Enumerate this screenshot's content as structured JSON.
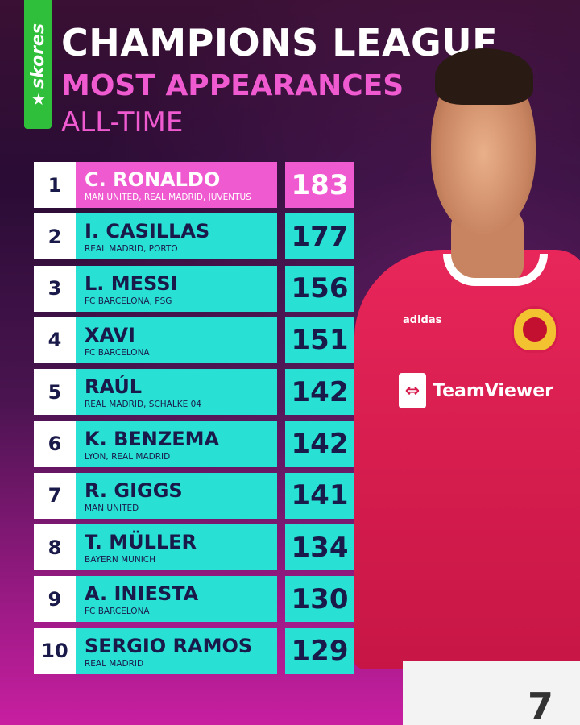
{
  "brand": {
    "name": "skores",
    "star": "★",
    "color": "#2fbf3a"
  },
  "header": {
    "title": "CHAMPIONS LEAGUE",
    "subtitle": "MOST APPEARANCES",
    "subtitle2": "ALL-TIME"
  },
  "colors": {
    "accent_pink": "#f05ad0",
    "accent_cyan": "#28e0d4",
    "text_dark": "#1a1a4a"
  },
  "rankings": [
    {
      "rank": "1",
      "name": "C. RONALDO",
      "clubs": "MAN UNITED, REAL MADRID, JUVENTUS",
      "appearances": "183"
    },
    {
      "rank": "2",
      "name": "I. CASILLAS",
      "clubs": "REAL MADRID, PORTO",
      "appearances": "177"
    },
    {
      "rank": "3",
      "name": "L. MESSI",
      "clubs": "FC BARCELONA, PSG",
      "appearances": "156"
    },
    {
      "rank": "4",
      "name": "XAVI",
      "clubs": "FC BARCELONA",
      "appearances": "151"
    },
    {
      "rank": "5",
      "name": "RAÚL",
      "clubs": "REAL MADRID, SCHALKE 04",
      "appearances": "142"
    },
    {
      "rank": "6",
      "name": "K. BENZEMA",
      "clubs": "LYON, REAL MADRID",
      "appearances": "142"
    },
    {
      "rank": "7",
      "name": "R. GIGGS",
      "clubs": "MAN UNITED",
      "appearances": "141"
    },
    {
      "rank": "8",
      "name": "T. MÜLLER",
      "clubs": "BAYERN MUNICH",
      "appearances": "134"
    },
    {
      "rank": "9",
      "name": "A. INIESTA",
      "clubs": "FC BARCELONA",
      "appearances": "130"
    },
    {
      "rank": "10",
      "name": "SERGIO RAMOS",
      "clubs": "REAL MADRID",
      "appearances": "129"
    }
  ],
  "photo": {
    "sponsor": "TeamViewer",
    "kit_brand": "adidas",
    "shirt_number": "7"
  }
}
